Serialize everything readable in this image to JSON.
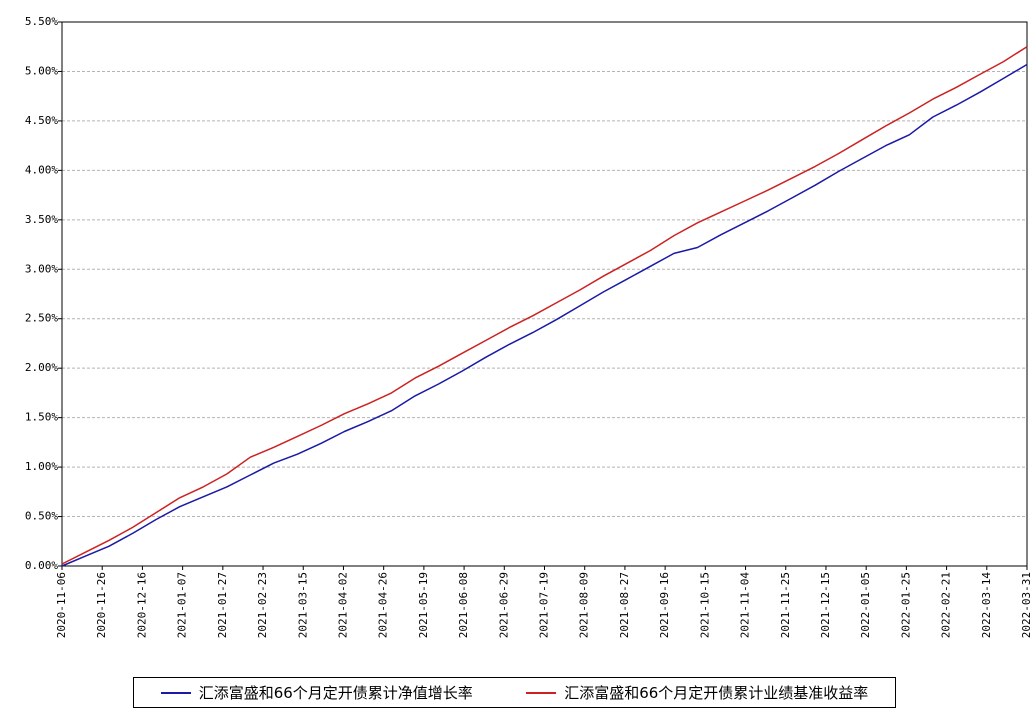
{
  "chart_data": {
    "type": "line",
    "title": "",
    "xlabel": "",
    "ylabel": "",
    "ylim": [
      0,
      5.5
    ],
    "grid": true,
    "legend_position": "bottom",
    "y_ticks": [
      "0.00%",
      "0.50%",
      "1.00%",
      "1.50%",
      "2.00%",
      "2.50%",
      "3.00%",
      "3.50%",
      "4.00%",
      "4.50%",
      "5.00%",
      "5.50%"
    ],
    "x_ticks": [
      "2020-11-06",
      "2020-11-26",
      "2020-12-16",
      "2021-01-07",
      "2021-01-27",
      "2021-02-23",
      "2021-03-15",
      "2021-04-02",
      "2021-04-26",
      "2021-05-19",
      "2021-06-08",
      "2021-06-29",
      "2021-07-19",
      "2021-08-09",
      "2021-08-27",
      "2021-09-16",
      "2021-10-15",
      "2021-11-04",
      "2021-11-25",
      "2021-12-15",
      "2022-01-05",
      "2022-01-25",
      "2022-02-21",
      "2022-03-14",
      "2022-03-31"
    ],
    "series": [
      {
        "name": "汇添富盛和66个月定开债累计净值增长率",
        "color": "#1a1aa6",
        "values": [
          0.0,
          0.1,
          0.2,
          0.33,
          0.47,
          0.6,
          0.7,
          0.8,
          0.92,
          1.04,
          1.13,
          1.24,
          1.36,
          1.46,
          1.57,
          1.72,
          1.84,
          1.97,
          2.11,
          2.24,
          2.36,
          2.49,
          2.63,
          2.77,
          2.9,
          3.03,
          3.16,
          3.22,
          3.35,
          3.47,
          3.59,
          3.72,
          3.85,
          3.99,
          4.12,
          4.25,
          4.36,
          4.54,
          4.66,
          4.79,
          4.93,
          5.07
        ]
      },
      {
        "name": "汇添富盛和66个月定开债累计业绩基准收益率",
        "color": "#cc2222",
        "values": [
          0.02,
          0.14,
          0.26,
          0.39,
          0.54,
          0.69,
          0.8,
          0.93,
          1.1,
          1.2,
          1.31,
          1.42,
          1.54,
          1.64,
          1.75,
          1.9,
          2.02,
          2.15,
          2.28,
          2.41,
          2.53,
          2.66,
          2.79,
          2.93,
          3.06,
          3.19,
          3.34,
          3.47,
          3.58,
          3.69,
          3.8,
          3.92,
          4.04,
          4.17,
          4.31,
          4.45,
          4.58,
          4.72,
          4.84,
          4.97,
          5.1,
          5.25
        ]
      }
    ]
  }
}
